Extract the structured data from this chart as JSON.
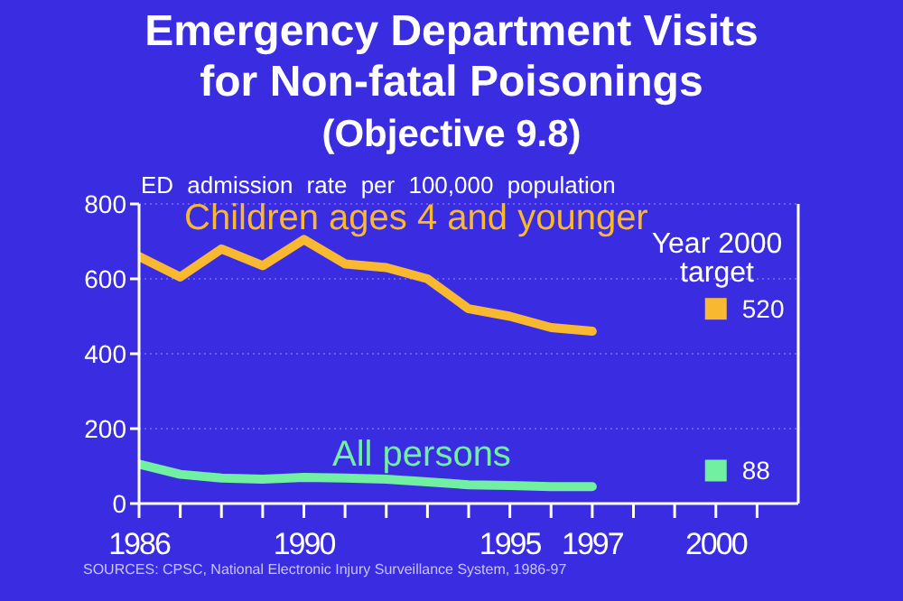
{
  "chart_data": {
    "type": "line",
    "title": "Emergency Department Visits for Non-fatal Poisonings",
    "subtitle": "(Objective 9.8)",
    "ylabel": "ED admission rate per 100,000 population",
    "x": [
      1986,
      1987,
      1988,
      1989,
      1990,
      1991,
      1992,
      1993,
      1994,
      1995,
      1996,
      1997
    ],
    "series": [
      {
        "name": "Children ages 4 and younger",
        "color": "#f8b830",
        "values": [
          660,
          605,
          680,
          635,
          705,
          640,
          630,
          600,
          520,
          500,
          470,
          460
        ]
      },
      {
        "name": "All persons",
        "color": "#70f0a0",
        "values": [
          105,
          78,
          68,
          65,
          70,
          68,
          65,
          58,
          50,
          48,
          45,
          45
        ]
      },
      {
        "type": "scatter",
        "x": [
          2000
        ],
        "color": "#f8b830",
        "values": [
          520
        ],
        "value_labels": [
          "520"
        ],
        "marker": "square"
      },
      {
        "type": "scatter",
        "x": [
          2000
        ],
        "color": "#70f0a0",
        "values": [
          88
        ],
        "value_labels": [
          "88"
        ],
        "marker": "square"
      }
    ],
    "xlim": [
      1986,
      2002
    ],
    "xticks": [
      1986,
      {
        "value": 1987,
        "label": null
      },
      {
        "value": 1988,
        "label": null
      },
      {
        "value": 1989,
        "label": null
      },
      1990,
      {
        "value": 1991,
        "label": null
      },
      {
        "value": 1992,
        "label": null
      },
      {
        "value": 1993,
        "label": null
      },
      {
        "value": 1994,
        "label": null
      },
      1995,
      {
        "value": 1996,
        "label": null
      },
      1997,
      {
        "value": 1998,
        "label": null
      },
      {
        "value": 1999,
        "label": null
      },
      2000,
      {
        "value": 2001,
        "label": null
      }
    ],
    "ylim": [
      0,
      800
    ],
    "yticks": [
      0,
      200,
      400,
      600,
      800
    ],
    "grid": "y",
    "legend": false,
    "marker": "none",
    "line_style": "solid",
    "annotations": [
      "Year 2000 target",
      "SOURCES: CPSC, National Electronic Injury Surveillance System, 1986-97"
    ]
  }
}
